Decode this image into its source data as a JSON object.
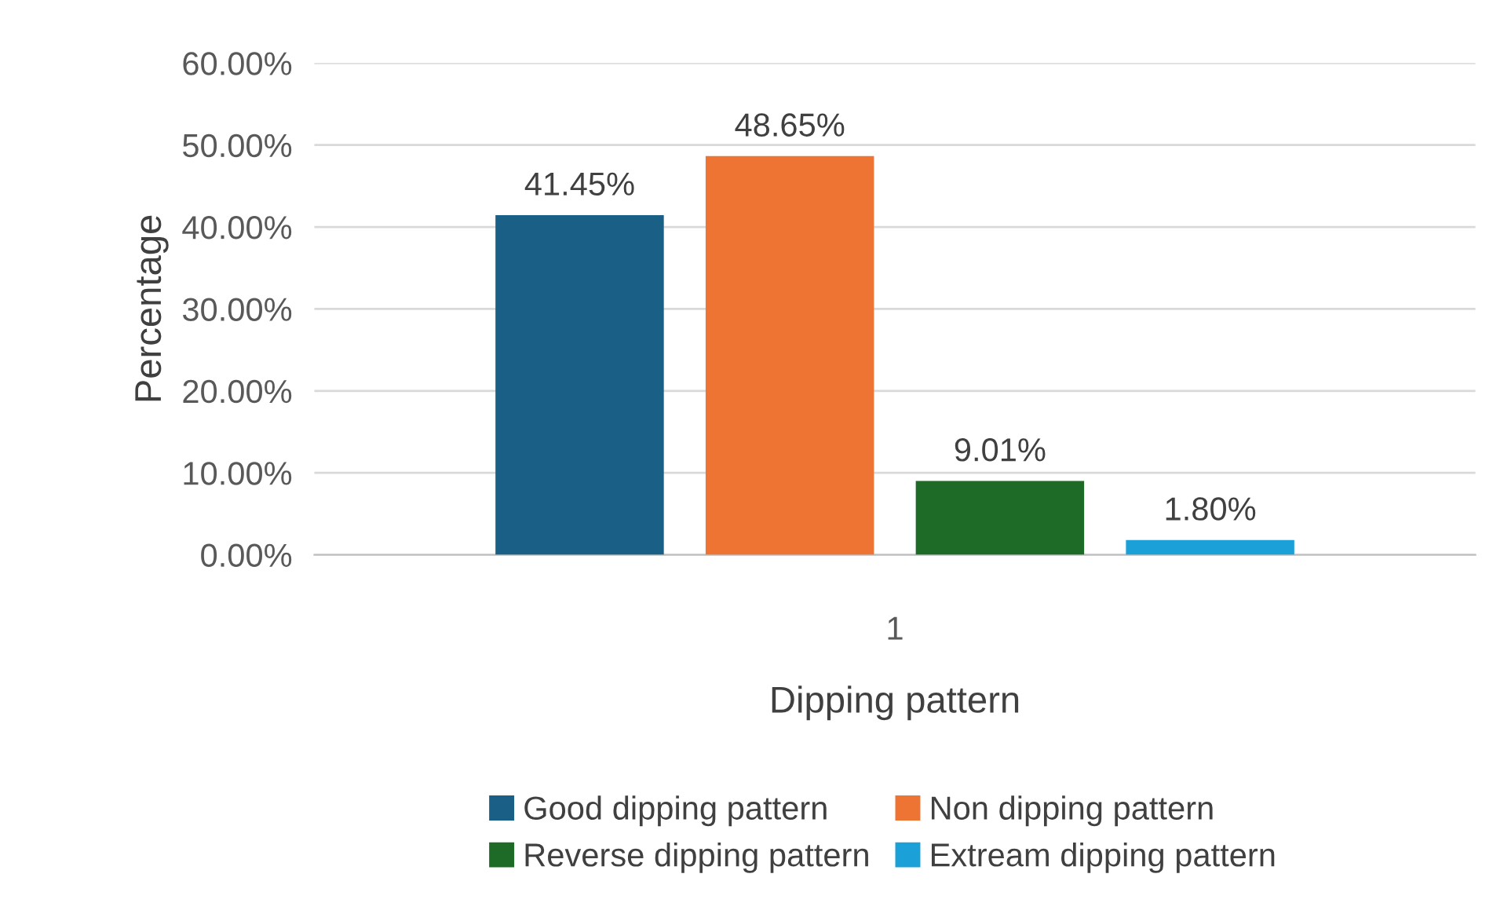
{
  "chart_data": {
    "type": "bar",
    "xlabel": "Dipping pattern",
    "ylabel": "Percentage",
    "categories": [
      "1"
    ],
    "series": [
      {
        "name": "Good dipping pattern",
        "color": "#1a5f85",
        "values": [
          41.45
        ],
        "value_labels": [
          "41.45%"
        ]
      },
      {
        "name": "Non dipping pattern",
        "color": "#ed7433",
        "values": [
          48.65
        ],
        "value_labels": [
          "48.65%"
        ]
      },
      {
        "name": "Reverse dipping pattern",
        "color": "#1e6b27",
        "values": [
          9.01
        ],
        "value_labels": [
          "9.01%"
        ]
      },
      {
        "name": "Extream dipping pattern",
        "color": "#1ba0d7",
        "values": [
          1.8
        ],
        "value_labels": [
          "1.80%"
        ]
      }
    ],
    "ylim": [
      0,
      60
    ],
    "yticks": [
      {
        "value": 0,
        "label": "0.00%"
      },
      {
        "value": 10,
        "label": "10.00%"
      },
      {
        "value": 20,
        "label": "20.00%"
      },
      {
        "value": 30,
        "label": "30.00%"
      },
      {
        "value": 40,
        "label": "40.00%"
      },
      {
        "value": 50,
        "label": "50.00%"
      },
      {
        "value": 60,
        "label": "60.00%"
      }
    ],
    "grid": "y",
    "legend": "bottom"
  }
}
